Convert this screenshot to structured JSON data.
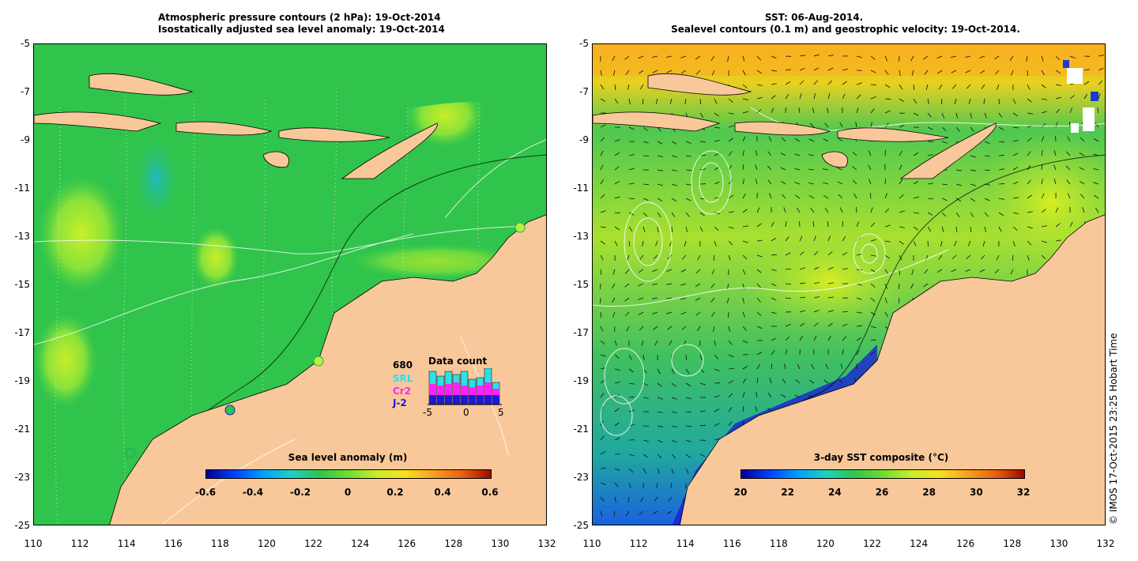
{
  "left_panel": {
    "title_line1": "Atmospheric pressure contours (2 hPa): 19-Oct-2014",
    "title_line2": "Isostatically adjusted sea level anomaly: 19-Oct-2014",
    "colorbar": {
      "label": "Sea level anomaly (m)",
      "ticks": [
        "-0.6",
        "-0.4",
        "-0.2",
        "0",
        "0.2",
        "0.4",
        "0.6"
      ],
      "range": [
        -0.6,
        0.6
      ]
    },
    "legend": {
      "count": "680",
      "srl": "SRL",
      "cr2": "Cr2",
      "j2": "J-2",
      "title": "Data count",
      "xticks": [
        "-5",
        "0",
        "5"
      ],
      "colors": {
        "srl": "#2de0e8",
        "cr2": "#ff22ff",
        "j2": "#1a1ad8"
      }
    }
  },
  "right_panel": {
    "title_line1": "SST: 06-Aug-2014.",
    "title_line2": "Sealevel contours (0.1 m) and geostrophic velocity: 19-Oct-2014.",
    "colorbar": {
      "label": "3-day SST composite (°C)",
      "ticks": [
        "20",
        "22",
        "24",
        "26",
        "28",
        "30",
        "32"
      ],
      "range": [
        20,
        32
      ]
    }
  },
  "axes": {
    "lat_ticks": [
      "-5",
      "-7",
      "-9",
      "-11",
      "-13",
      "-15",
      "-17",
      "-19",
      "-21",
      "-23",
      "-25"
    ],
    "lon_ticks": [
      "110",
      "112",
      "114",
      "116",
      "118",
      "120",
      "122",
      "124",
      "126",
      "128",
      "130",
      "132"
    ],
    "lat_range": [
      -25,
      -5
    ],
    "lon_range": [
      110,
      132
    ]
  },
  "credit": "© IMOS 17-Oct-2015 23:25 Hobart Time",
  "colors": {
    "land": "#f8c89a",
    "ocean_green": "#2cc44a",
    "frame": "#000000"
  }
}
